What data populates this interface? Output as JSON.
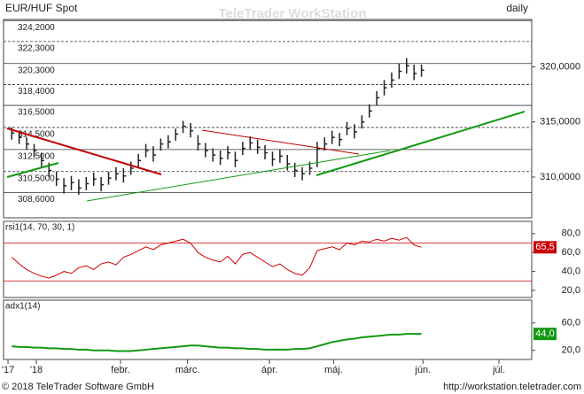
{
  "header": {
    "watermark": "TeleTrader WorkStation",
    "footer_left": "© 2018 TeleTrader Software GmbH",
    "footer_right": "http://workstation.teletrader.com"
  },
  "chart_data": [
    {
      "type": "ohlc",
      "title": "EUR/HUF Spot",
      "period": "daily",
      "color": "#222222",
      "x": [
        0,
        1,
        2,
        3,
        4,
        5,
        6,
        7,
        8,
        9,
        10,
        11,
        12,
        13,
        14,
        15,
        16,
        17,
        18,
        19,
        20,
        21,
        22,
        23,
        24,
        25,
        26,
        27,
        28,
        29,
        30,
        31,
        32,
        33,
        34,
        35,
        36,
        37,
        38,
        39,
        40,
        41,
        42,
        43,
        44,
        45,
        46,
        47,
        48,
        49,
        50,
        51,
        52,
        53,
        54,
        55
      ],
      "high": [
        314.5,
        314.2,
        313.6,
        313.0,
        312.2,
        311.3,
        310.5,
        309.9,
        310.1,
        309.8,
        310.0,
        310.4,
        310.0,
        310.5,
        310.9,
        310.8,
        311.4,
        312.1,
        313.0,
        312.8,
        313.5,
        313.8,
        314.4,
        315.1,
        314.9,
        313.8,
        313.1,
        312.6,
        312.4,
        312.8,
        312.3,
        313.2,
        313.7,
        313.4,
        312.9,
        312.3,
        312.5,
        312.0,
        311.3,
        310.9,
        311.4,
        313.2,
        313.6,
        314.2,
        314.0,
        315.0,
        314.8,
        315.6,
        316.6,
        317.8,
        318.8,
        319.5,
        320.3,
        320.8,
        320.2,
        320.2
      ],
      "low": [
        313.4,
        313.0,
        312.5,
        311.8,
        310.9,
        310.0,
        309.2,
        308.5,
        308.8,
        308.4,
        308.8,
        309.2,
        308.7,
        309.3,
        309.7,
        309.5,
        310.2,
        310.9,
        311.8,
        311.4,
        312.4,
        312.6,
        313.3,
        314.0,
        313.6,
        312.4,
        311.8,
        311.4,
        311.1,
        311.6,
        310.9,
        312.0,
        312.5,
        312.1,
        311.6,
        311.0,
        311.3,
        310.6,
        310.0,
        309.7,
        310.2,
        310.9,
        312.4,
        313.0,
        312.8,
        313.8,
        313.5,
        314.4,
        315.4,
        316.5,
        317.4,
        318.1,
        318.9,
        319.4,
        318.8,
        319.1
      ],
      "close": [
        314.0,
        313.6,
        313.0,
        312.4,
        311.5,
        310.6,
        309.8,
        309.2,
        309.5,
        309.0,
        309.4,
        309.8,
        309.3,
        309.9,
        310.3,
        310.1,
        310.8,
        311.5,
        312.4,
        312.0,
        313.0,
        313.2,
        313.9,
        314.6,
        314.2,
        313.0,
        312.4,
        312.0,
        311.7,
        312.2,
        311.5,
        312.6,
        313.1,
        312.7,
        312.2,
        311.6,
        311.9,
        311.2,
        310.6,
        310.3,
        310.8,
        312.6,
        313.0,
        313.6,
        313.4,
        314.4,
        314.1,
        315.0,
        316.0,
        317.2,
        318.1,
        318.8,
        319.6,
        320.1,
        319.4,
        319.7
      ],
      "xlim": [
        -1.1,
        69.8
      ],
      "xticks": [
        {
          "value": -0.5,
          "label": "'17"
        },
        {
          "value": 3.3,
          "label": "'18"
        },
        {
          "value": 14.6,
          "label": "febr."
        },
        {
          "value": 23.6,
          "label": "márc."
        },
        {
          "value": 34.6,
          "label": "ápr."
        },
        {
          "value": 43.2,
          "label": "máj."
        },
        {
          "value": 55.2,
          "label": "jún."
        },
        {
          "value": 65.4,
          "label": "júl."
        }
      ],
      "ylim": [
        306.3,
        324.3
      ],
      "yticks": [
        {
          "value": 310,
          "label": "310,0000"
        },
        {
          "value": 315,
          "label": "315,0000"
        },
        {
          "value": 320,
          "label": "320,0000"
        }
      ],
      "levels": [
        {
          "value": 324.2,
          "label": "324,2000"
        },
        {
          "value": 322.3,
          "label": "322,3000"
        },
        {
          "value": 320.3,
          "label": "320,3000"
        },
        {
          "value": 318.4,
          "label": "318,4000"
        },
        {
          "value": 316.5,
          "label": "316,5000"
        },
        {
          "value": 314.5,
          "label": "314,5000"
        },
        {
          "value": 312.5,
          "label": "312,5000"
        },
        {
          "value": 310.5,
          "label": "310,5000"
        },
        {
          "value": 308.6,
          "label": "308,6000"
        }
      ]
    },
    {
      "type": "line",
      "title": "rsi1(14, 70, 30, 1)",
      "color": "#cc0000",
      "values": [
        55,
        48,
        42,
        38,
        35,
        33,
        36,
        40,
        38,
        44,
        46,
        42,
        48,
        50,
        47,
        55,
        58,
        62,
        66,
        63,
        68,
        70,
        72,
        74,
        70,
        60,
        55,
        52,
        50,
        56,
        48,
        58,
        60,
        55,
        50,
        45,
        48,
        42,
        38,
        36,
        44,
        62,
        64,
        66,
        63,
        70,
        68,
        72,
        71,
        74,
        72,
        75,
        73,
        76,
        68,
        65.5
      ],
      "current": {
        "value": 65.5,
        "label": "65,5"
      },
      "bands": [
        70,
        30
      ],
      "ylim": [
        12.5,
        92.9
      ],
      "yticks": [
        {
          "value": 80,
          "label": "80,0"
        },
        {
          "value": 60,
          "label": "60,0"
        },
        {
          "value": 40,
          "label": "40,0"
        },
        {
          "value": 20,
          "label": "20,0"
        }
      ]
    },
    {
      "type": "line",
      "title": "adx1(14)",
      "color": "#119911",
      "values": [
        26,
        25,
        25,
        24,
        24,
        23,
        23,
        22,
        22,
        21,
        21,
        20,
        20,
        20,
        19,
        19,
        19,
        20,
        21,
        22,
        23,
        24,
        25,
        26,
        27,
        27,
        26,
        25,
        24,
        24,
        23,
        23,
        22,
        22,
        21,
        21,
        21,
        21,
        22,
        22,
        23,
        26,
        29,
        32,
        34,
        36,
        37,
        39,
        40,
        41,
        42,
        43,
        43,
        44,
        44,
        44
      ],
      "current": {
        "value": 44,
        "label": "44,0"
      },
      "ylim": [
        6.7,
        93.3
      ],
      "yticks": [
        {
          "value": 60,
          "label": "60,0"
        },
        {
          "value": 20,
          "label": "20,0"
        }
      ]
    }
  ]
}
